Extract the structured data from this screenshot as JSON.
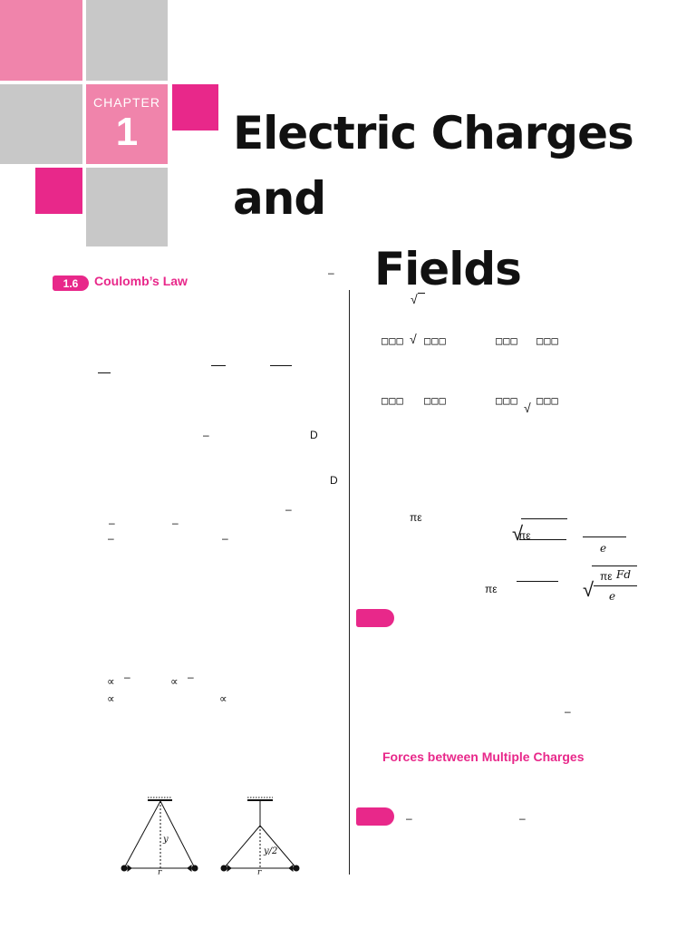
{
  "chapter": {
    "word": "CHAPTER",
    "number": "1"
  },
  "title": {
    "line1": "Electric Charges",
    "line2": "and",
    "line3": "Fields"
  },
  "section": {
    "number": "1.6",
    "title": "Coulomb’s Law"
  },
  "subsection": {
    "title": "Forces between Multiple Charges"
  },
  "left_marks": {
    "dash": "–",
    "D": "D",
    "prop": "∝"
  },
  "right_marks": {
    "root": "√",
    "opt_a": "□□□",
    "opt_b": "□□□",
    "opt_c": "□□□",
    "opt_d": "□□□",
    "pi_eps": "πε",
    "e": "e",
    "Fd": "Fd"
  },
  "figure": {
    "label_y": "y",
    "label_y2": "y/2",
    "label_r": "r"
  }
}
